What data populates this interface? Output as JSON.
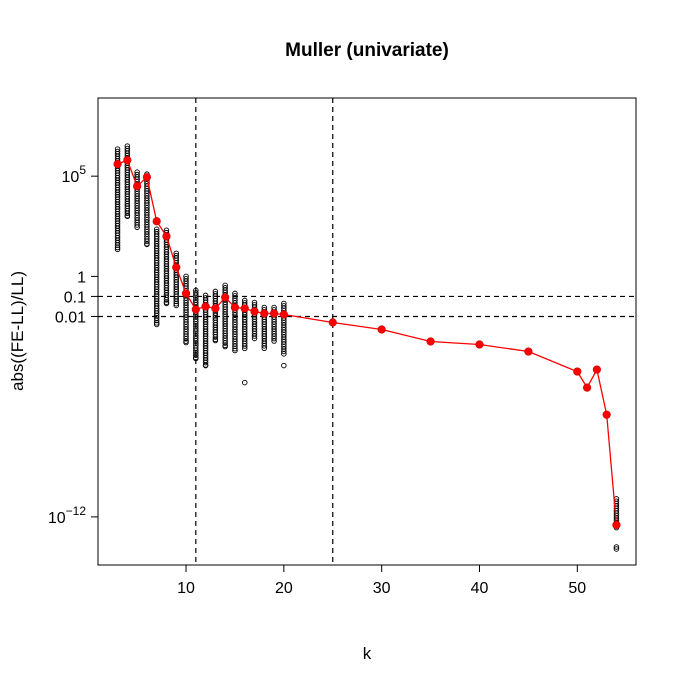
{
  "chart_data": {
    "type": "scatter",
    "title": "Muller (univariate)",
    "xlabel": "k",
    "ylabel": "abs((FE-LL)/LL)",
    "y_scale": "log10",
    "xlim": [
      1,
      56
    ],
    "ylim_log10": [
      -14.4,
      8.9
    ],
    "x_ticks": [
      {
        "value": 10,
        "label": "10"
      },
      {
        "value": 20,
        "label": "20"
      },
      {
        "value": 30,
        "label": "30"
      },
      {
        "value": 40,
        "label": "40"
      },
      {
        "value": 50,
        "label": "50"
      }
    ],
    "y_ticks": [
      {
        "log10": 5,
        "base": "10",
        "exp": "5",
        "label": "10^5"
      },
      {
        "log10": 0,
        "base": "1",
        "exp": "",
        "label": "1"
      },
      {
        "log10": -1,
        "base": "0.1",
        "exp": "",
        "label": "0.1"
      },
      {
        "log10": -2,
        "base": "0.01",
        "exp": "",
        "label": "0.01"
      },
      {
        "log10": -12,
        "base": "10",
        "exp": "−12",
        "label": "10^-12"
      }
    ],
    "vlines_x": [
      11,
      25
    ],
    "hlines_y": [
      0.1,
      0.01
    ],
    "series": [
      {
        "role": "individual",
        "marker": "open-circle",
        "color": "#000000",
        "points_log10": [
          {
            "x": 3,
            "min": 1.35,
            "max": 6.35,
            "outliers": [
              1.35
            ]
          },
          {
            "x": 4,
            "min": 3.0,
            "max": 6.5,
            "outliers": [
              3.0
            ]
          },
          {
            "x": 5,
            "min": 2.45,
            "max": 5.2,
            "outliers": [
              2.45
            ]
          },
          {
            "x": 6,
            "min": 1.6,
            "max": 5.1,
            "outliers": [
              1.6
            ]
          },
          {
            "x": 7,
            "min": -2.4,
            "max": 2.35,
            "outliers": [
              -2.4
            ]
          },
          {
            "x": 8,
            "min": -1.35,
            "max": 2.3,
            "outliers": [
              -1.35
            ]
          },
          {
            "x": 9,
            "min": -1.45,
            "max": 1.15,
            "outliers": [
              -1.45
            ]
          },
          {
            "x": 10,
            "min": -3.3,
            "max": 0.0,
            "outliers": [
              -3.3
            ]
          },
          {
            "x": 11,
            "min": -4.1,
            "max": -0.7,
            "outliers": [
              -4.1
            ]
          },
          {
            "x": 12,
            "min": -4.45,
            "max": -0.95,
            "outliers": [
              -4.45
            ]
          },
          {
            "x": 13,
            "min": -3.2,
            "max": -0.75,
            "outliers": [
              -3.2
            ]
          },
          {
            "x": 14,
            "min": -3.5,
            "max": -0.45,
            "outliers": [
              -3.5
            ]
          },
          {
            "x": 15,
            "min": -3.7,
            "max": -0.85,
            "outliers": [
              -3.7
            ]
          },
          {
            "x": 16,
            "min": -3.6,
            "max": -1.2,
            "outliers": [
              -5.3
            ]
          },
          {
            "x": 17,
            "min": -3.1,
            "max": -1.3,
            "outliers": []
          },
          {
            "x": 18,
            "min": -3.7,
            "max": -1.55,
            "outliers": []
          },
          {
            "x": 19,
            "min": -3.3,
            "max": -1.55,
            "outliers": []
          },
          {
            "x": 20,
            "min": -3.9,
            "max": -1.35,
            "outliers": [
              -4.45
            ]
          },
          {
            "x": 54,
            "min": -12.6,
            "max": -11.1,
            "outliers": [
              -13.5,
              -13.6
            ]
          }
        ]
      },
      {
        "role": "mean",
        "marker": "filled-circle",
        "color": "#ff0000",
        "x": [
          3,
          4,
          5,
          6,
          7,
          8,
          9,
          10,
          11,
          12,
          13,
          14,
          15,
          16,
          17,
          18,
          19,
          20,
          25,
          30,
          35,
          40,
          45,
          50,
          51,
          52,
          53,
          54
        ],
        "log10_y": [
          5.6,
          5.8,
          4.5,
          4.95,
          2.75,
          2.0,
          0.45,
          -0.85,
          -1.65,
          -1.5,
          -1.6,
          -1.05,
          -1.55,
          -1.6,
          -1.75,
          -1.85,
          -1.85,
          -1.9,
          -2.3,
          -2.65,
          -3.25,
          -3.4,
          -3.75,
          -4.75,
          -5.55,
          -4.65,
          -6.9,
          -12.4
        ]
      }
    ]
  }
}
